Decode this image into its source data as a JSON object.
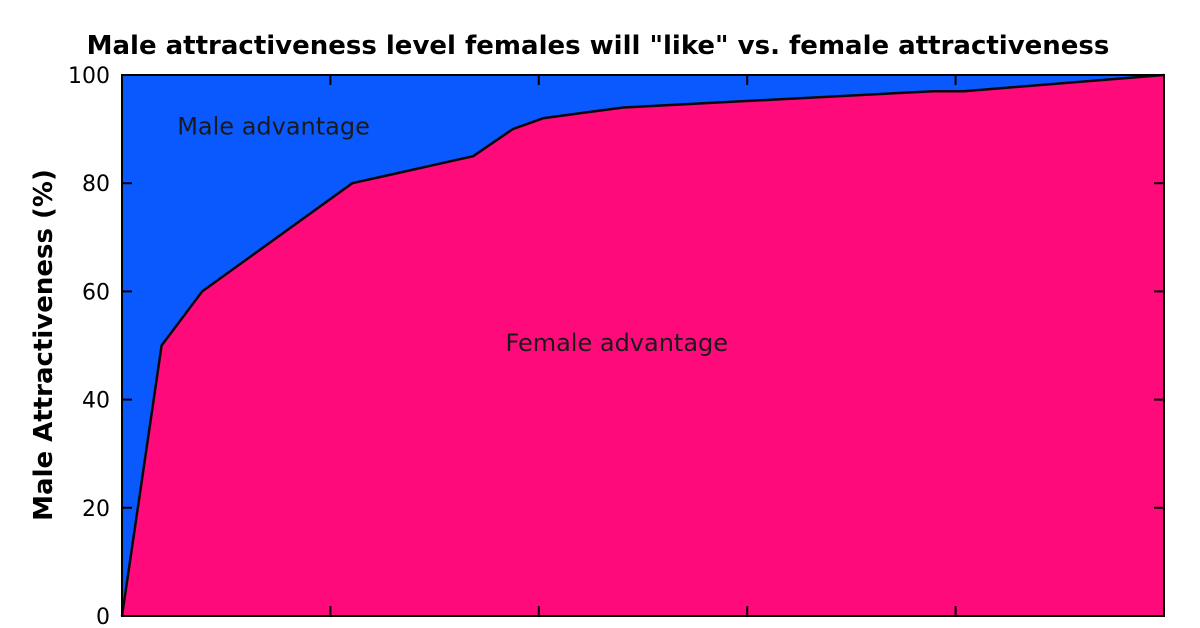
{
  "chart_data": {
    "type": "area",
    "title": "Male attractiveness level females will \"like\" vs. female attractiveness",
    "xlabel": "",
    "ylabel": "Male Attractiveness (%)",
    "xlim": [
      0,
      100
    ],
    "ylim": [
      0,
      100
    ],
    "y_ticks": [
      0,
      20,
      40,
      60,
      80,
      100
    ],
    "x_ticks": [
      20,
      40,
      60,
      80
    ],
    "grid": false,
    "legend": "none",
    "series": [
      {
        "x": [
          0,
          3.8,
          7.7,
          22.1,
          33.7,
          37.5,
          40.4,
          44.2,
          48.1,
          77.9,
          80.8,
          100
        ],
        "y": [
          0,
          50,
          60,
          80,
          85,
          90,
          92,
          93,
          94,
          97,
          97,
          100
        ]
      }
    ],
    "annotations": [
      {
        "text": "Male advantage",
        "x": 5.3,
        "y": 89
      },
      {
        "text": "Female advantage",
        "x": 36.8,
        "y": 49
      }
    ],
    "colors": {
      "upper_region": "#0a59ff",
      "lower_region": "#ff0a7a",
      "line": "#0a0a0a"
    }
  }
}
